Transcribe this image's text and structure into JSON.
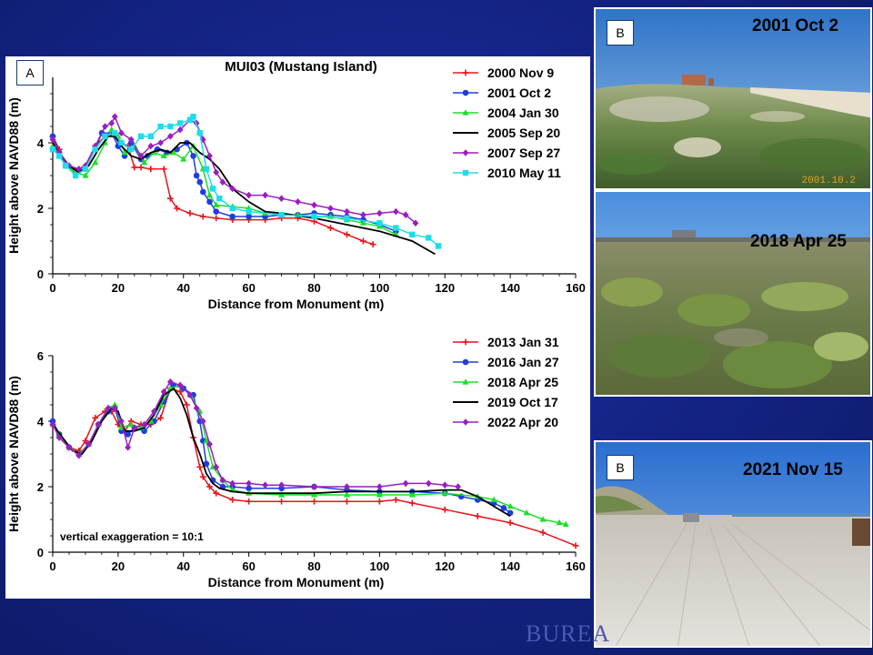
{
  "panel_a": {
    "label": "A",
    "chart_data": [
      {
        "type": "line",
        "title": "MUI03 (Mustang Island)",
        "xlabel": "Distance from Monument (m)",
        "ylabel": "Height above NAVD88 (m)",
        "xlim": [
          0,
          160
        ],
        "ylim": [
          0,
          6
        ],
        "xticks": [
          "0",
          "20",
          "40",
          "60",
          "80",
          "100",
          "120",
          "140",
          "160"
        ],
        "yticks": [
          "0",
          "2",
          "4"
        ],
        "annotation": "",
        "series": [
          {
            "name": "2000 Nov 9",
            "color": "#e8141c",
            "marker": "plus",
            "x": [
              0,
              2,
              4,
              7,
              10,
              13,
              16,
              18,
              21,
              23,
              25,
              27,
              30,
              34,
              36,
              38,
              42,
              46,
              50,
              55,
              60,
              65,
              70,
              75,
              80,
              85,
              90,
              95,
              98
            ],
            "y": [
              4.2,
              3.8,
              3.3,
              3.15,
              3.3,
              3.9,
              4.2,
              4.3,
              4.0,
              3.9,
              3.25,
              3.25,
              3.2,
              3.2,
              2.3,
              2.0,
              1.85,
              1.75,
              1.7,
              1.65,
              1.65,
              1.65,
              1.7,
              1.7,
              1.6,
              1.4,
              1.2,
              1.0,
              0.9
            ]
          },
          {
            "name": "2001 Oct 2",
            "color": "#1e3ee0",
            "marker": "circle",
            "x": [
              0,
              2,
              4,
              7,
              10,
              13,
              15,
              18,
              20,
              22,
              24,
              27,
              29,
              32,
              35,
              38,
              41,
              43,
              44,
              45,
              46,
              48,
              50,
              55,
              60,
              65,
              70,
              75,
              80,
              85,
              90,
              95,
              100,
              105
            ],
            "y": [
              4.2,
              3.7,
              3.3,
              3.1,
              3.2,
              3.8,
              4.3,
              4.3,
              3.9,
              3.6,
              4.0,
              3.5,
              3.6,
              3.8,
              3.7,
              3.8,
              4.0,
              3.6,
              3.0,
              2.8,
              2.5,
              2.2,
              1.9,
              1.75,
              1.75,
              1.75,
              1.8,
              1.8,
              1.85,
              1.8,
              1.75,
              1.65,
              1.5,
              1.3
            ]
          },
          {
            "name": "2004 Jan 30",
            "color": "#1ede2a",
            "marker": "triangle",
            "x": [
              0,
              2,
              4,
              7,
              10,
              13,
              16,
              18,
              20,
              22,
              25,
              28,
              31,
              34,
              37,
              40,
              43,
              46,
              48,
              50,
              55,
              60,
              65,
              70,
              75,
              80,
              85,
              90,
              95,
              100,
              105
            ],
            "y": [
              3.9,
              3.6,
              3.3,
              3.1,
              3.0,
              3.4,
              4.0,
              4.4,
              4.2,
              3.7,
              3.9,
              3.4,
              3.7,
              3.6,
              3.7,
              3.5,
              3.9,
              3.2,
              2.4,
              2.1,
              2.05,
              2.0,
              1.85,
              1.8,
              1.8,
              1.75,
              1.75,
              1.65,
              1.55,
              1.45,
              1.2
            ]
          },
          {
            "name": "2005 Sep 20",
            "color": "#000000",
            "marker": "none",
            "x": [
              0,
              2,
              5,
              8,
              11,
              14,
              17,
              19,
              21,
              24,
              27,
              30,
              33,
              36,
              39,
              42,
              45,
              48,
              51,
              55,
              60,
              65,
              70,
              80,
              90,
              100,
              110,
              117
            ],
            "y": [
              4.0,
              3.7,
              3.3,
              3.1,
              3.3,
              3.8,
              4.2,
              4.2,
              3.9,
              3.6,
              3.5,
              3.7,
              3.8,
              3.7,
              4.0,
              4.0,
              3.7,
              3.5,
              3.2,
              2.6,
              2.2,
              1.9,
              1.85,
              1.7,
              1.5,
              1.3,
              1.0,
              0.6
            ]
          },
          {
            "name": "2007 Sep 27",
            "color": "#9a1ec0",
            "marker": "diamond",
            "x": [
              0,
              2,
              5,
              8,
              10,
              13,
              16,
              18,
              19,
              21,
              24,
              27,
              30,
              33,
              36,
              39,
              42,
              44,
              46,
              48,
              50,
              52,
              55,
              60,
              65,
              70,
              75,
              80,
              85,
              90,
              95,
              100,
              105,
              108,
              111
            ],
            "y": [
              4.1,
              3.7,
              3.3,
              3.2,
              3.3,
              3.9,
              4.5,
              4.6,
              4.8,
              4.3,
              4.1,
              3.6,
              3.9,
              4.0,
              4.2,
              4.4,
              4.7,
              4.6,
              4.1,
              3.6,
              3.1,
              2.8,
              2.6,
              2.4,
              2.4,
              2.3,
              2.2,
              2.1,
              2.0,
              1.9,
              1.8,
              1.85,
              1.9,
              1.8,
              1.55
            ]
          },
          {
            "name": "2010 May 11",
            "color": "#1edcec",
            "marker": "square",
            "x": [
              0,
              2,
              4,
              7,
              10,
              13,
              16,
              19,
              21,
              24,
              27,
              30,
              33,
              36,
              39,
              42,
              43,
              45,
              47,
              49,
              51,
              55,
              60,
              70,
              80,
              90,
              100,
              105,
              110,
              115,
              118
            ],
            "y": [
              3.8,
              3.6,
              3.3,
              3.0,
              3.2,
              3.8,
              4.2,
              4.3,
              4.0,
              3.8,
              4.2,
              4.2,
              4.5,
              4.5,
              4.6,
              4.7,
              4.8,
              4.3,
              3.2,
              2.6,
              2.3,
              2.0,
              1.9,
              1.8,
              1.75,
              1.7,
              1.55,
              1.4,
              1.2,
              1.1,
              0.85
            ]
          }
        ]
      },
      {
        "type": "line",
        "title": "",
        "xlabel": "Distance from Monument (m)",
        "ylabel": "Height above NAVD88 (m)",
        "xlim": [
          0,
          160
        ],
        "ylim": [
          0,
          6
        ],
        "xticks": [
          "0",
          "20",
          "40",
          "60",
          "80",
          "100",
          "120",
          "140",
          "160"
        ],
        "yticks": [
          "0",
          "2",
          "4",
          "6"
        ],
        "annotation": "vertical exaggeration = 10:1",
        "series": [
          {
            "name": "2013 Jan 31",
            "color": "#e8141c",
            "marker": "plus",
            "x": [
              0,
              2,
              5,
              8,
              10,
              13,
              16,
              18,
              20,
              22,
              24,
              27,
              30,
              33,
              36,
              39,
              41,
              43,
              45,
              46,
              48,
              50,
              55,
              60,
              70,
              80,
              90,
              100,
              105,
              110,
              120,
              130,
              140,
              150,
              160
            ],
            "y": [
              3.9,
              3.5,
              3.2,
              3.1,
              3.4,
              4.1,
              4.3,
              4.3,
              3.9,
              3.7,
              4.0,
              3.9,
              3.9,
              4.1,
              5.0,
              4.9,
              4.5,
              3.5,
              2.6,
              2.3,
              2.0,
              1.8,
              1.6,
              1.55,
              1.55,
              1.55,
              1.55,
              1.55,
              1.6,
              1.5,
              1.3,
              1.1,
              0.9,
              0.6,
              0.2
            ]
          },
          {
            "name": "2016 Jan 27",
            "color": "#1e3ee0",
            "marker": "circle",
            "x": [
              0,
              2,
              5,
              8,
              11,
              14,
              17,
              19,
              21,
              23,
              25,
              28,
              31,
              34,
              37,
              40,
              43,
              45,
              46,
              47,
              49,
              52,
              55,
              60,
              70,
              80,
              90,
              100,
              110,
              120,
              125,
              130,
              135,
              138,
              140
            ],
            "y": [
              4.0,
              3.6,
              3.2,
              3.0,
              3.3,
              3.9,
              4.3,
              4.4,
              3.7,
              3.6,
              3.8,
              3.7,
              4.0,
              4.6,
              5.1,
              5.0,
              4.8,
              4.0,
              3.4,
              2.7,
              2.2,
              2.0,
              2.0,
              1.95,
              1.95,
              2.0,
              1.9,
              1.85,
              1.85,
              1.8,
              1.7,
              1.6,
              1.5,
              1.35,
              1.2
            ]
          },
          {
            "name": "2018 Apr 25",
            "color": "#1ede2a",
            "marker": "triangle",
            "x": [
              0,
              2,
              5,
              8,
              11,
              14,
              17,
              19,
              21,
              24,
              27,
              30,
              33,
              36,
              39,
              42,
              45,
              47,
              49,
              52,
              55,
              60,
              70,
              80,
              90,
              100,
              110,
              120,
              130,
              135,
              140,
              145,
              150,
              155,
              157
            ],
            "y": [
              3.9,
              3.6,
              3.2,
              3.0,
              3.3,
              3.9,
              4.4,
              4.5,
              3.8,
              3.9,
              3.8,
              4.0,
              4.5,
              5.0,
              5.1,
              4.8,
              4.3,
              3.4,
              2.6,
              2.2,
              1.9,
              1.8,
              1.75,
              1.75,
              1.75,
              1.75,
              1.75,
              1.8,
              1.7,
              1.6,
              1.4,
              1.2,
              1.0,
              0.9,
              0.85
            ]
          },
          {
            "name": "2019 Oct 17",
            "color": "#000000",
            "marker": "none",
            "x": [
              0,
              3,
              6,
              9,
              12,
              15,
              18,
              20,
              22,
              25,
              28,
              31,
              34,
              37,
              39,
              41,
              43,
              45,
              47,
              49,
              51,
              55,
              60,
              70,
              80,
              90,
              100,
              110,
              120,
              125,
              130,
              135,
              140
            ],
            "y": [
              3.9,
              3.5,
              3.1,
              3.0,
              3.4,
              4.0,
              4.4,
              4.3,
              3.7,
              3.7,
              3.8,
              4.2,
              4.8,
              5.0,
              4.7,
              4.2,
              3.5,
              3.0,
              2.4,
              2.1,
              1.95,
              1.85,
              1.8,
              1.8,
              1.8,
              1.85,
              1.85,
              1.85,
              1.9,
              1.9,
              1.7,
              1.4,
              1.1
            ]
          },
          {
            "name": "2022 Apr 20",
            "color": "#9a1ec0",
            "marker": "diamond",
            "x": [
              0,
              2,
              5,
              8,
              11,
              14,
              17,
              19,
              21,
              23,
              25,
              28,
              31,
              34,
              36,
              39,
              42,
              44,
              46,
              48,
              50,
              52,
              55,
              60,
              65,
              70,
              80,
              90,
              100,
              108,
              115,
              120,
              124
            ],
            "y": [
              3.9,
              3.5,
              3.2,
              2.95,
              3.3,
              3.9,
              4.4,
              4.4,
              4.0,
              3.2,
              3.8,
              3.9,
              4.3,
              4.9,
              5.2,
              5.1,
              4.8,
              4.4,
              4.0,
              3.3,
              2.6,
              2.2,
              2.1,
              2.1,
              2.05,
              2.05,
              2.0,
              2.0,
              2.0,
              2.1,
              2.1,
              2.05,
              2.0
            ]
          }
        ]
      }
    ]
  },
  "photo_2001": {
    "label": "B",
    "date": "2001 Oct 2",
    "stamp": "2001.10.2"
  },
  "photo_2018": {
    "date": "2018 Apr 25"
  },
  "photo_2021": {
    "label": "B",
    "date": "2021 Nov 15"
  },
  "footer": {
    "logo_text": "BUREA"
  }
}
